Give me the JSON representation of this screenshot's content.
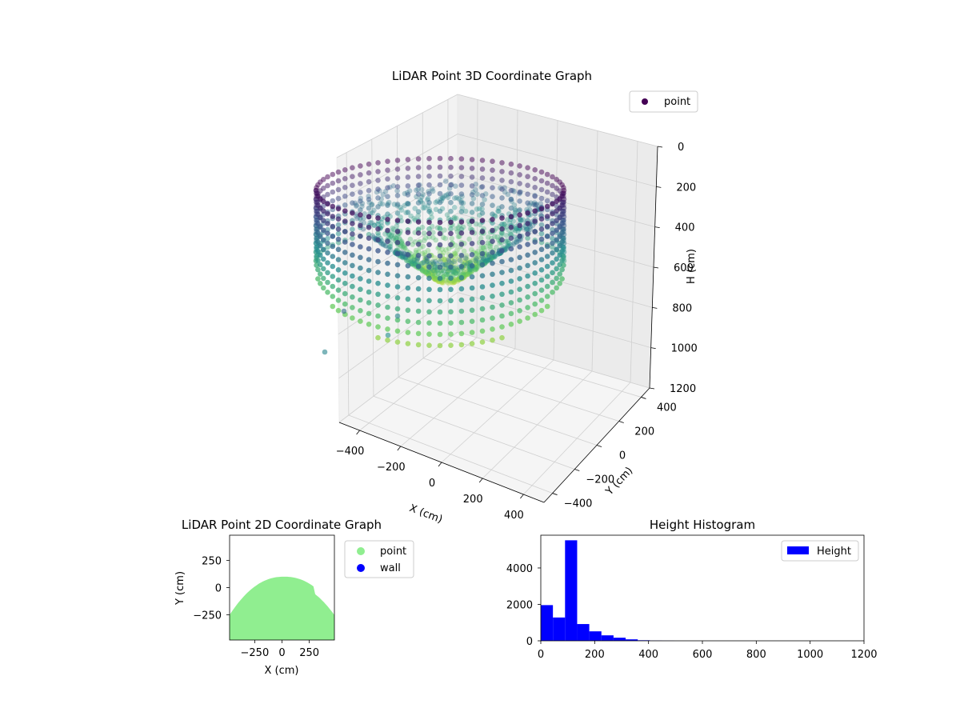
{
  "chart_data": [
    {
      "type": "scatter",
      "title": "LiDAR Point 3D Coordinate Graph",
      "xlabel": "X (cm)",
      "ylabel": "Y (cm)",
      "zlabel": "H (cm)",
      "xticks": [
        "−400",
        "−200",
        "0",
        "200",
        "400"
      ],
      "yticks": [
        "−400",
        "−200",
        "0",
        "200",
        "400"
      ],
      "zticks": [
        "0",
        "200",
        "400",
        "600",
        "800",
        "1000",
        "1200"
      ],
      "zlim": [
        1200,
        0
      ],
      "grid": true,
      "legend": [
        {
          "label": "point",
          "color": "#440154"
        }
      ],
      "legend_position": "upper right",
      "colormap": "viridis",
      "shape": "elliptical ring of points (radius about 480 cm) hanging from H 0 to 400 cm, with inner points spiralling toward the centre down to about 650 cm; a few stray points reach about 850 cm"
    },
    {
      "type": "scatter",
      "title": "LiDAR Point 2D Coordinate Graph",
      "xlabel": "X (cm)",
      "ylabel": "Y (cm)",
      "xticks": [
        "−250",
        "0",
        "250"
      ],
      "yticks": [
        "250",
        "0",
        "−250"
      ],
      "xlim": [
        -480,
        480
      ],
      "ylim": [
        -480,
        480
      ],
      "series": [
        {
          "name": "point",
          "color": "#90ee90",
          "shape": "filled half-disc, top edge near Y 100 at X 0, widening to Y −250 at X ±480"
        },
        {
          "name": "wall",
          "color": "#0000ff",
          "values": []
        }
      ],
      "legend_position": "outside right"
    },
    {
      "type": "bar",
      "title": "Height Histogram",
      "xlabel": "",
      "ylabel": "",
      "xlim": [
        0,
        1200
      ],
      "ylim": [
        0,
        5800
      ],
      "xticks": [
        "0",
        "200",
        "400",
        "600",
        "800",
        "1000",
        "1200"
      ],
      "yticks": [
        "0",
        "2000",
        "4000"
      ],
      "bin_width": 45,
      "bins": [
        {
          "start": 0,
          "count": 1960
        },
        {
          "start": 45,
          "count": 1280
        },
        {
          "start": 90,
          "count": 5520
        },
        {
          "start": 135,
          "count": 920
        },
        {
          "start": 180,
          "count": 520
        },
        {
          "start": 225,
          "count": 300
        },
        {
          "start": 270,
          "count": 170
        },
        {
          "start": 315,
          "count": 80
        },
        {
          "start": 360,
          "count": 30
        },
        {
          "start": 405,
          "count": 10
        },
        {
          "start": 450,
          "count": 5
        }
      ],
      "series": [
        {
          "name": "Height",
          "color": "#0000ff"
        }
      ],
      "legend_position": "upper right"
    }
  ]
}
